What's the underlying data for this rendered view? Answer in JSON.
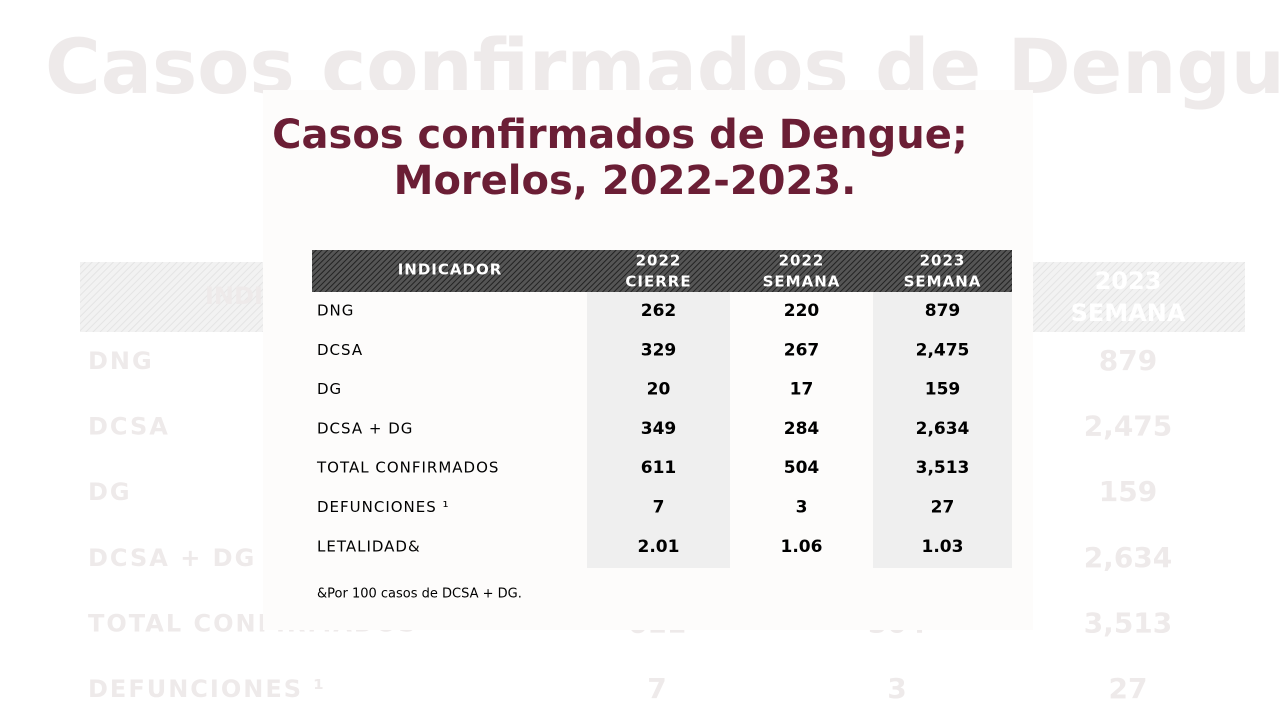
{
  "title": [
    "Casos confirmados de Dengue;",
    "Morelos, 2022-2023."
  ],
  "table": {
    "header": [
      [
        "INDICADOR"
      ],
      [
        "2022",
        "CIERRE"
      ],
      [
        "2022",
        "SEMANA"
      ],
      [
        "2023",
        "SEMANA"
      ]
    ],
    "rows": [
      [
        "DNG",
        "262",
        "220",
        "879"
      ],
      [
        "DCSA",
        "329",
        "267",
        "2,475"
      ],
      [
        "DG",
        "20",
        "17",
        "159"
      ],
      [
        "DCSA + DG",
        "349",
        "284",
        "2,634"
      ],
      [
        "TOTAL CONFIRMADOS",
        "611",
        "504",
        "3,513"
      ],
      [
        "DEFUNCIONES ¹",
        "7",
        "3",
        "27"
      ],
      [
        "LETALIDAD&",
        "2.01",
        "1.06",
        "1.03"
      ]
    ]
  },
  "footnote": "&Por 100 casos de DCSA + DG."
}
